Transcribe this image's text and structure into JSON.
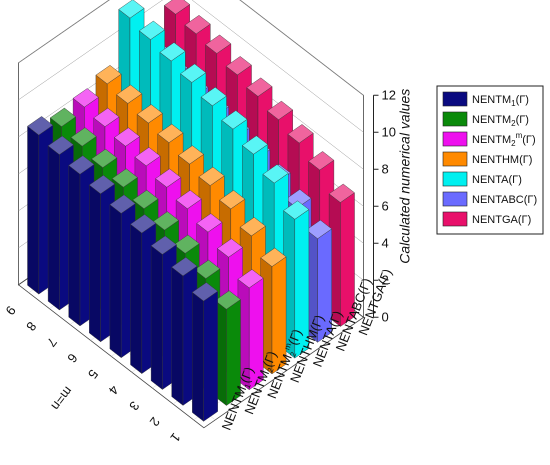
{
  "chart_data": {
    "type": "bar",
    "categories": [
      "1",
      "2",
      "3",
      "4",
      "5",
      "6",
      "7",
      "8",
      "9"
    ],
    "series": [
      {
        "name": "NENTM1(Γ)",
        "label_base": "NENTM",
        "label_sub": "1",
        "label_sup": "",
        "label_suffix": "(Γ)",
        "color": "#0a0a80",
        "values": [
          6.5,
          7.0,
          7.3,
          7.6,
          7.8,
          8.0,
          8.2,
          8.4,
          8.6
        ]
      },
      {
        "name": "NENTM2(Γ)",
        "label_base": "NENTM",
        "label_sub": "2",
        "label_sup": "",
        "label_suffix": "(Γ)",
        "color": "#0a8a0a",
        "values": [
          5.2,
          6.0,
          6.5,
          6.9,
          7.2,
          7.5,
          7.7,
          8.0,
          8.2
        ]
      },
      {
        "name": "NENTM2m(Γ)",
        "label_base": "NENTM",
        "label_sub": "2",
        "label_sup": "m",
        "label_suffix": "(Γ)",
        "color": "#ee10ee",
        "values": [
          5.5,
          6.3,
          6.8,
          7.2,
          7.5,
          7.8,
          8.0,
          8.2,
          8.4
        ]
      },
      {
        "name": "NENTHM(Γ)",
        "label_base": "NENTHM",
        "label_sub": "",
        "label_sup": "",
        "label_suffix": "(Γ)",
        "color": "#ff8a00",
        "values": [
          5.8,
          6.6,
          7.2,
          7.6,
          7.9,
          8.2,
          8.4,
          8.6,
          8.8
        ]
      },
      {
        "name": "NENTA(Γ)",
        "label_base": "NENTA",
        "label_sub": "",
        "label_sup": "",
        "label_suffix": "(Γ)",
        "color": "#00f0f0",
        "values": [
          7.5,
          8.6,
          9.3,
          9.8,
          10.2,
          10.6,
          10.9,
          11.2,
          11.5
        ]
      },
      {
        "name": "NENTABC(Γ)",
        "label_base": "NENTABC",
        "label_sub": "",
        "label_sup": "",
        "label_suffix": "(Γ)",
        "color": "#6a6aff",
        "values": [
          5.6,
          6.4,
          6.9,
          7.3,
          7.6,
          7.9,
          8.1,
          8.3,
          8.5
        ]
      },
      {
        "name": "NENTGA(Γ)",
        "label_base": "NENTGA",
        "label_sub": "",
        "label_sup": "",
        "label_suffix": "(Γ)",
        "color": "#e8106a",
        "values": [
          6.7,
          7.6,
          8.2,
          8.6,
          9.0,
          9.3,
          9.6,
          9.8,
          10.0
        ]
      }
    ],
    "xlabel": "m=n",
    "ylabel": "",
    "zlabel": "Calculated numerical values",
    "zlim": [
      0,
      12
    ],
    "zticks": [
      "0",
      "2",
      "4",
      "6",
      "8",
      "10",
      "12"
    ],
    "grid": true,
    "legend_position": "right"
  }
}
